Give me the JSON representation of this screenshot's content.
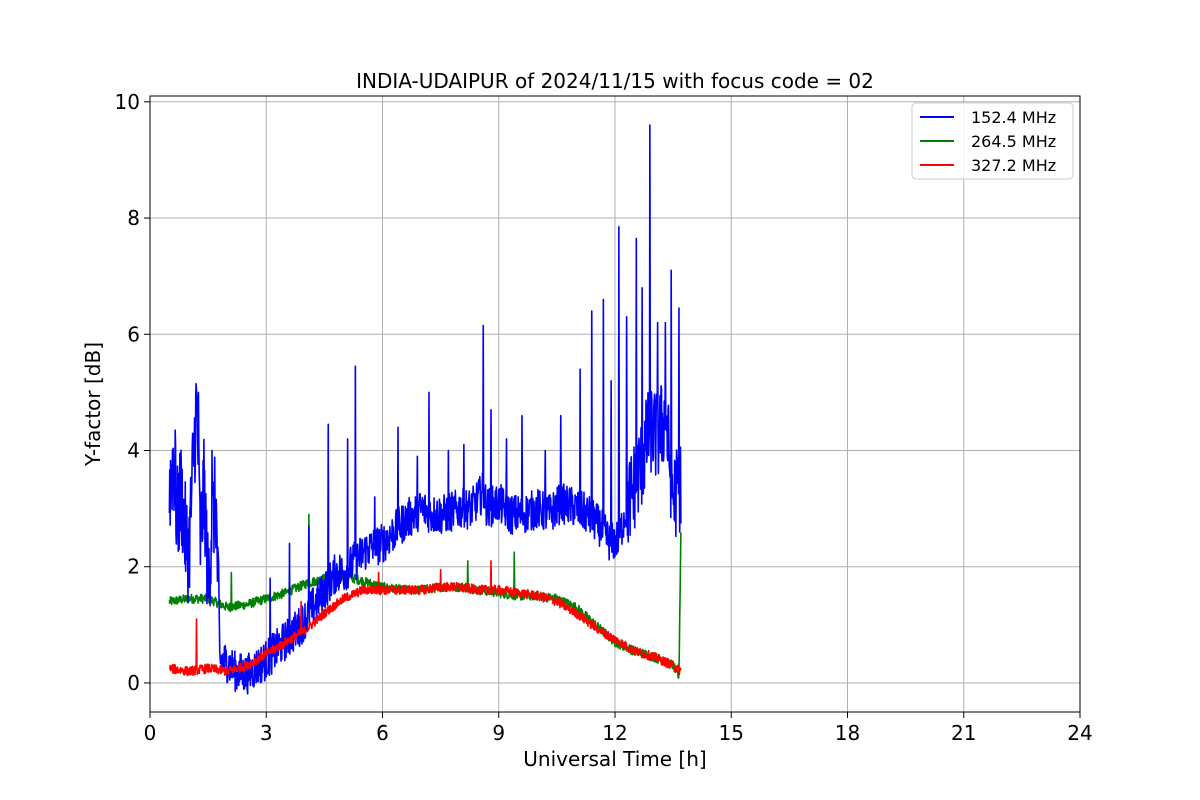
{
  "chart_data": {
    "type": "line",
    "title": "INDIA-UDAIPUR of 2024/11/15 with focus code = 02",
    "xlabel": "Universal Time [h]",
    "ylabel": "Y-factor [dB]",
    "xlim": [
      0,
      24
    ],
    "ylim": [
      -0.5,
      10.1
    ],
    "xticks": [
      0,
      3,
      6,
      9,
      12,
      15,
      18,
      21,
      24
    ],
    "yticks": [
      0,
      2,
      4,
      6,
      8,
      10
    ],
    "grid": true,
    "legend_position": "top-right",
    "series": [
      {
        "name": "152.4 MHz",
        "color": "#0000ff",
        "x": [
          0.5,
          0.6,
          0.7,
          0.8,
          0.9,
          1.0,
          1.1,
          1.2,
          1.3,
          1.4,
          1.5,
          1.6,
          1.7,
          1.8,
          2.0,
          2.2,
          2.5,
          2.8,
          3.0,
          3.3,
          3.6,
          3.9,
          4.2,
          4.5,
          4.8,
          5.0,
          5.3,
          5.6,
          6.0,
          6.3,
          6.6,
          7.0,
          7.3,
          7.6,
          8.0,
          8.3,
          8.6,
          8.7,
          9.0,
          9.3,
          9.6,
          10.0,
          10.3,
          10.6,
          11.0,
          11.3,
          11.6,
          11.9,
          12.1,
          12.3,
          12.5,
          12.7,
          12.9,
          13.1,
          13.3,
          13.5,
          13.7
        ],
        "values": [
          3.3,
          3.9,
          2.8,
          3.3,
          2.6,
          2.2,
          3.6,
          4.8,
          2.4,
          3.4,
          1.6,
          2.8,
          3.1,
          0.4,
          0.35,
          0.2,
          0.15,
          0.3,
          0.4,
          0.6,
          0.8,
          1.0,
          1.3,
          1.6,
          1.9,
          1.9,
          2.1,
          2.3,
          2.4,
          2.6,
          2.8,
          3.0,
          2.9,
          2.9,
          3.0,
          3.0,
          3.3,
          3.0,
          3.1,
          2.9,
          2.9,
          3.0,
          2.9,
          3.1,
          3.0,
          2.9,
          2.7,
          2.4,
          2.5,
          3.0,
          3.4,
          3.8,
          4.4,
          4.2,
          4.6,
          3.2,
          3.4
        ],
        "spikes": [
          {
            "x": 0.65,
            "y": 4.35
          },
          {
            "x": 1.25,
            "y": 5.0
          },
          {
            "x": 1.6,
            "y": 4.0
          },
          {
            "x": 3.1,
            "y": 1.8
          },
          {
            "x": 3.6,
            "y": 2.4
          },
          {
            "x": 4.1,
            "y": 2.7
          },
          {
            "x": 4.6,
            "y": 4.45
          },
          {
            "x": 5.3,
            "y": 5.45
          },
          {
            "x": 5.1,
            "y": 4.2
          },
          {
            "x": 5.8,
            "y": 3.2
          },
          {
            "x": 6.4,
            "y": 4.4
          },
          {
            "x": 6.9,
            "y": 3.9
          },
          {
            "x": 7.2,
            "y": 5.0
          },
          {
            "x": 7.7,
            "y": 4.0
          },
          {
            "x": 8.1,
            "y": 4.1
          },
          {
            "x": 8.6,
            "y": 6.15
          },
          {
            "x": 8.8,
            "y": 4.7
          },
          {
            "x": 9.2,
            "y": 4.2
          },
          {
            "x": 9.6,
            "y": 4.6
          },
          {
            "x": 10.2,
            "y": 4.0
          },
          {
            "x": 10.6,
            "y": 4.6
          },
          {
            "x": 11.1,
            "y": 5.4
          },
          {
            "x": 11.4,
            "y": 6.4
          },
          {
            "x": 11.7,
            "y": 6.6
          },
          {
            "x": 11.9,
            "y": 5.2
          },
          {
            "x": 12.1,
            "y": 7.85
          },
          {
            "x": 12.3,
            "y": 6.3
          },
          {
            "x": 12.55,
            "y": 7.65
          },
          {
            "x": 12.7,
            "y": 6.8
          },
          {
            "x": 12.9,
            "y": 9.6
          },
          {
            "x": 13.1,
            "y": 6.2
          },
          {
            "x": 13.3,
            "y": 6.2
          },
          {
            "x": 13.45,
            "y": 7.1
          },
          {
            "x": 13.65,
            "y": 6.45
          }
        ]
      },
      {
        "name": "264.5 MHz",
        "color": "#008000",
        "x": [
          0.5,
          1.0,
          1.5,
          2.0,
          2.5,
          3.0,
          3.5,
          4.0,
          4.5,
          5.0,
          5.5,
          6.0,
          6.5,
          7.0,
          7.5,
          8.0,
          8.5,
          9.0,
          9.5,
          10.0,
          10.5,
          11.0,
          11.5,
          12.0,
          12.5,
          13.0,
          13.5,
          13.65,
          13.7
        ],
        "values": [
          1.4,
          1.45,
          1.45,
          1.3,
          1.35,
          1.45,
          1.55,
          1.7,
          1.8,
          1.85,
          1.75,
          1.65,
          1.6,
          1.6,
          1.65,
          1.65,
          1.6,
          1.55,
          1.5,
          1.5,
          1.45,
          1.3,
          1.0,
          0.7,
          0.55,
          0.45,
          0.3,
          0.1,
          2.6
        ],
        "spikes": [
          {
            "x": 2.1,
            "y": 1.9
          },
          {
            "x": 3.6,
            "y": 1.9
          },
          {
            "x": 4.1,
            "y": 2.9
          },
          {
            "x": 4.9,
            "y": 2.2
          },
          {
            "x": 8.2,
            "y": 2.1
          },
          {
            "x": 9.4,
            "y": 2.25
          }
        ]
      },
      {
        "name": "327.2 MHz",
        "color": "#ff0000",
        "x": [
          0.5,
          1.0,
          1.5,
          2.0,
          2.5,
          3.0,
          3.5,
          4.0,
          4.5,
          5.0,
          5.5,
          6.0,
          6.5,
          7.0,
          7.5,
          8.0,
          8.5,
          9.0,
          9.5,
          10.0,
          10.5,
          11.0,
          11.5,
          12.0,
          12.5,
          13.0,
          13.5,
          13.7
        ],
        "values": [
          0.25,
          0.2,
          0.25,
          0.2,
          0.3,
          0.5,
          0.7,
          0.9,
          1.2,
          1.45,
          1.6,
          1.6,
          1.6,
          1.6,
          1.65,
          1.65,
          1.6,
          1.6,
          1.55,
          1.5,
          1.4,
          1.2,
          0.95,
          0.75,
          0.55,
          0.45,
          0.3,
          0.2
        ],
        "spikes": [
          {
            "x": 1.2,
            "y": 1.1
          },
          {
            "x": 3.9,
            "y": 1.4
          },
          {
            "x": 5.9,
            "y": 1.9
          },
          {
            "x": 7.5,
            "y": 1.95
          },
          {
            "x": 8.8,
            "y": 2.1
          }
        ]
      }
    ]
  }
}
